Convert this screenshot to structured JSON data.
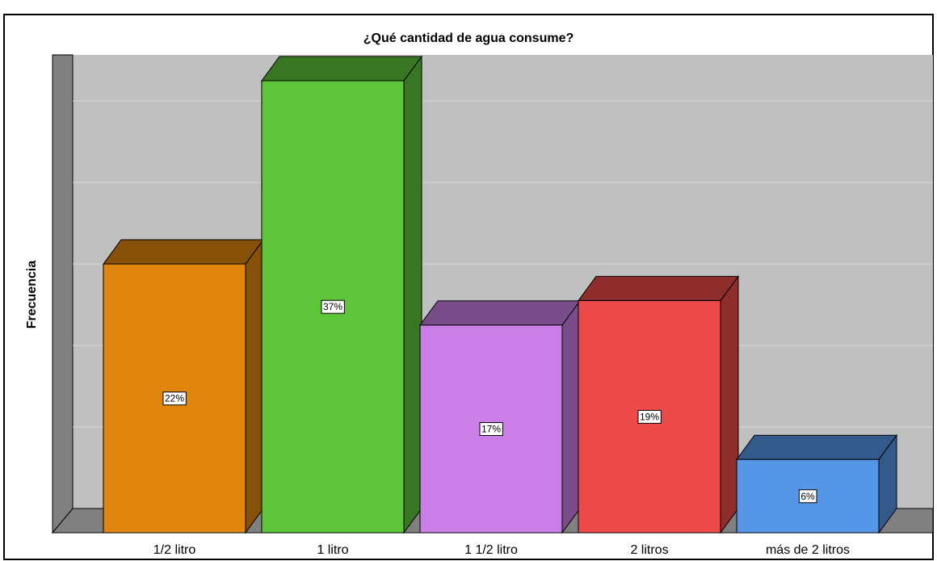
{
  "chart_data": {
    "type": "bar3d",
    "title": "¿Qué cantidad de agua consume?",
    "y_label": "Frecuencia",
    "categories": [
      "1/2 litro",
      "1 litro",
      "1 1/2 litro",
      "2 litros",
      "más de 2 litros"
    ],
    "values": [
      22,
      37,
      17,
      19,
      6
    ],
    "value_labels": [
      "22%",
      "37%",
      "17%",
      "19%",
      "6%"
    ],
    "colors": [
      "#e0860e",
      "#5ec43a",
      "#c97fe6",
      "#ee4a4a",
      "#5596e6"
    ],
    "ylim": [
      0,
      37
    ]
  }
}
